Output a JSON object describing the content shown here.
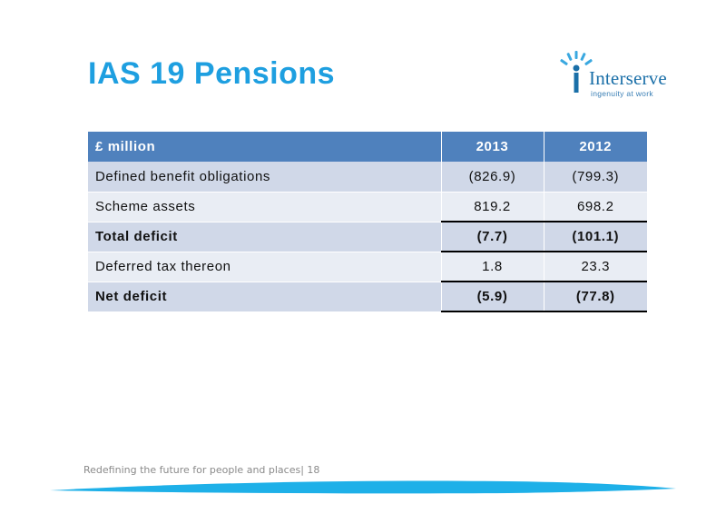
{
  "slide": {
    "title": "IAS 19 Pensions",
    "footer": "Redefining the future for people and places| 18"
  },
  "logo": {
    "name": "Interserve",
    "tagline": "ingenuity at work",
    "icon": "interserve-sun-figure-icon",
    "colors": {
      "blue": "#1a6fa8",
      "light_blue": "#3aa8e0"
    }
  },
  "table": {
    "headers": [
      "£ million",
      "2013",
      "2012"
    ],
    "rows": [
      {
        "label": "Defined benefit obligations",
        "v2013": "(826.9)",
        "v2012": "(799.3)"
      },
      {
        "label": "Scheme assets",
        "v2013": "819.2",
        "v2012": "698.2"
      },
      {
        "label": "Total deficit",
        "v2013": "(7.7)",
        "v2012": "(101.1)"
      },
      {
        "label": "Deferred tax thereon",
        "v2013": "1.8",
        "v2012": "23.3"
      },
      {
        "label": "Net deficit",
        "v2013": "(5.9)",
        "v2012": "(77.8)"
      }
    ]
  },
  "colors": {
    "title": "#1e9fe0",
    "header_fill": "#4f81bd",
    "row_dark": "#d0d8e8",
    "row_light": "#e9edf4",
    "swoosh": "#1eb0e8"
  }
}
